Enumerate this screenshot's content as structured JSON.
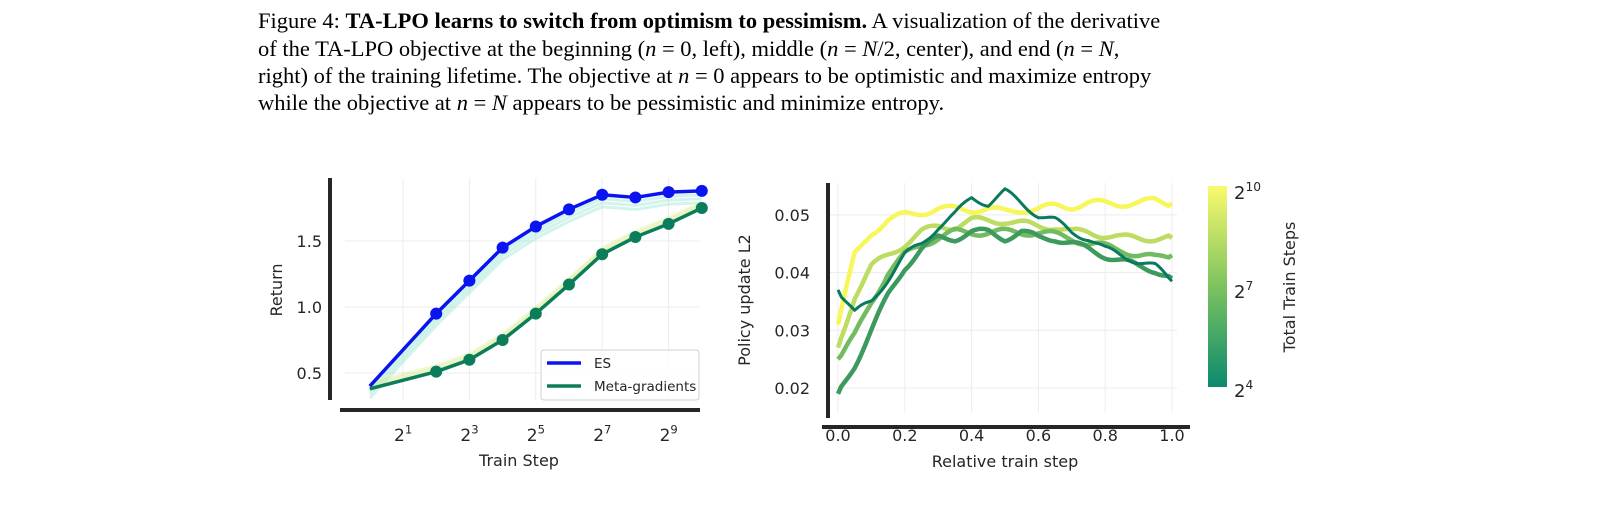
{
  "caption": {
    "lines": [
      [
        {
          "t": "Figure 4:  ",
          "s": ""
        },
        {
          "t": "TA-LPO learns to switch from optimism to pessimism.",
          "s": "b"
        },
        {
          "t": " A visualization of the derivative",
          "s": ""
        }
      ],
      [
        {
          "t": "of the TA-LPO objective at the beginning (",
          "s": ""
        },
        {
          "t": "n",
          "s": "i"
        },
        {
          "t": " = 0, left), middle (",
          "s": ""
        },
        {
          "t": "n",
          "s": "i"
        },
        {
          "t": " = ",
          "s": ""
        },
        {
          "t": "N",
          "s": "i"
        },
        {
          "t": "/2, center), and end (",
          "s": ""
        },
        {
          "t": "n",
          "s": "i"
        },
        {
          "t": " = ",
          "s": ""
        },
        {
          "t": "N",
          "s": "i"
        },
        {
          "t": ",",
          "s": ""
        }
      ],
      [
        {
          "t": "right) of the training lifetime. The objective at ",
          "s": ""
        },
        {
          "t": "n",
          "s": "i"
        },
        {
          "t": " = 0 appears to be optimistic and maximize entropy",
          "s": ""
        }
      ],
      [
        {
          "t": "while the objective at ",
          "s": ""
        },
        {
          "t": "n",
          "s": "i"
        },
        {
          "t": " = ",
          "s": ""
        },
        {
          "t": "N",
          "s": "i"
        },
        {
          "t": " appears to be pessimistic and minimize entropy.",
          "s": ""
        }
      ]
    ]
  },
  "chart_data": [
    {
      "type": "line",
      "title": "",
      "xlabel": "Train Step",
      "ylabel": "Return",
      "xscale": "log2",
      "x_tick_exponents": [
        1,
        3,
        5,
        7,
        9
      ],
      "y_ticks": [
        "0.5",
        "1.0",
        "1.5"
      ],
      "y_tick_values": [
        0.5,
        1.0,
        1.5
      ],
      "ylim": [
        0.22,
        1.97
      ],
      "grid": true,
      "legend_placement": "lower-right",
      "series": [
        {
          "name": "ES",
          "color": "#0a14f0",
          "x_exponents": [
            0,
            2,
            3,
            4,
            5,
            6,
            7,
            8,
            9,
            10
          ],
          "values": [
            0.4,
            0.95,
            1.2,
            1.45,
            1.61,
            1.74,
            1.85,
            1.83,
            1.87,
            1.88
          ],
          "markers_from_index": 1
        },
        {
          "name": "Meta-gradients",
          "color": "#0b7d5a",
          "x_exponents": [
            0,
            2,
            3,
            4,
            5,
            6,
            7,
            8,
            9,
            10
          ],
          "values": [
            0.38,
            0.51,
            0.6,
            0.75,
            0.95,
            1.17,
            1.4,
            1.53,
            1.63,
            1.75
          ],
          "markers_from_index": 1
        }
      ]
    },
    {
      "type": "line",
      "title": "",
      "xlabel": "Relative train step",
      "ylabel": "Policy update L2",
      "x_ticks": [
        "0.0",
        "0.2",
        "0.4",
        "0.6",
        "0.8",
        "1.0"
      ],
      "x_tick_values": [
        0,
        0.2,
        0.4,
        0.6,
        0.8,
        1.0
      ],
      "y_ticks": [
        "0.02",
        "0.03",
        "0.04",
        "0.05"
      ],
      "y_tick_values": [
        0.02,
        0.03,
        0.04,
        0.05
      ],
      "ylim": [
        0.0147,
        0.0555
      ],
      "grid": true,
      "x": [
        0,
        0.05,
        0.1,
        0.15,
        0.2,
        0.25,
        0.3,
        0.35,
        0.4,
        0.45,
        0.5,
        0.55,
        0.6,
        0.65,
        0.7,
        0.75,
        0.8,
        0.85,
        0.9,
        0.95,
        1.0
      ],
      "series": [
        {
          "name": "2^10",
          "color": "#f7f75c",
          "values": [
            0.031,
            0.043,
            0.047,
            0.049,
            0.05,
            0.0505,
            0.051,
            0.051,
            0.051,
            0.051,
            0.0505,
            0.051,
            0.051,
            0.0515,
            0.0515,
            0.052,
            0.052,
            0.052,
            0.052,
            0.0525,
            0.052
          ]
        },
        {
          "name": "2^8",
          "color": "#bcdc62",
          "values": [
            0.027,
            0.036,
            0.041,
            0.043,
            0.045,
            0.047,
            0.048,
            0.048,
            0.049,
            0.049,
            0.049,
            0.0485,
            0.048,
            0.048,
            0.047,
            0.047,
            0.0465,
            0.046,
            0.046,
            0.046,
            0.046
          ]
        },
        {
          "name": "2^6",
          "color": "#72bb60",
          "values": [
            0.025,
            0.029,
            0.035,
            0.04,
            0.043,
            0.045,
            0.046,
            0.047,
            0.047,
            0.047,
            0.047,
            0.047,
            0.047,
            0.0465,
            0.046,
            0.045,
            0.0445,
            0.044,
            0.043,
            0.0425,
            0.043
          ]
        },
        {
          "name": "2^5",
          "color": "#3c9a5c",
          "values": [
            0.019,
            0.024,
            0.03,
            0.036,
            0.041,
            0.044,
            0.046,
            0.046,
            0.047,
            0.047,
            0.046,
            0.047,
            0.046,
            0.046,
            0.045,
            0.044,
            0.043,
            0.042,
            0.041,
            0.0405,
            0.039
          ]
        },
        {
          "name": "2^4",
          "color": "#0a7a5e",
          "values": [
            0.037,
            0.033,
            0.035,
            0.039,
            0.043,
            0.045,
            0.048,
            0.05,
            0.053,
            0.052,
            0.054,
            0.052,
            0.05,
            0.049,
            0.047,
            0.046,
            0.044,
            0.043,
            0.042,
            0.041,
            0.0385
          ]
        }
      ],
      "colorbar": {
        "label": "Total Train Steps",
        "ticks": [
          {
            "base": "2",
            "exp": "10"
          },
          {
            "base": "2",
            "exp": "7"
          },
          {
            "base": "2",
            "exp": "4"
          }
        ],
        "color_low": "#0b8a6e",
        "color_mid": "#7cc35f",
        "color_high": "#fafa6e"
      }
    }
  ]
}
